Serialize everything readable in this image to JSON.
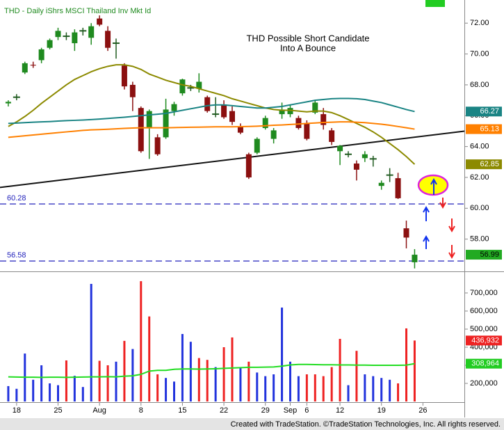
{
  "header": "THD - Daily  iShrs MSCI Thailand Inv Mkt Id",
  "footer": "Created with TradeStation. ©TradeStation Technologies, Inc. All rights reserved.",
  "chart_data": [
    {
      "type": "candlestick",
      "title": "THD Possible Short Candidate",
      "subtitle": "Into A Bounce",
      "x": [
        0,
        1,
        2,
        3,
        4,
        5,
        6,
        7,
        8,
        9,
        10,
        11,
        12,
        13,
        14,
        15,
        16,
        17,
        18,
        19,
        20,
        21,
        22,
        23,
        24,
        25,
        26,
        27,
        28,
        29,
        30,
        31,
        32,
        33,
        34,
        35,
        36,
        37,
        38,
        39,
        40,
        41,
        42,
        43,
        44,
        45,
        46,
        47,
        48,
        49
      ],
      "open": [
        66.8,
        67.2,
        68.8,
        69.3,
        69.6,
        70.4,
        71.1,
        71.15,
        70.7,
        71.5,
        71.05,
        72.3,
        71.5,
        70.7,
        69.25,
        68.0,
        66.5,
        65.2,
        64.6,
        64.6,
        66.3,
        67.45,
        67.8,
        67.75,
        67.2,
        66.1,
        66.7,
        66.3,
        65.3,
        63.5,
        63.6,
        65.2,
        64.5,
        66.1,
        66.1,
        65.85,
        65.5,
        66.2,
        66.1,
        65.05,
        63.7,
        63.5,
        62.9,
        63.25,
        63.2,
        61.45,
        62.15,
        61.95,
        58.7,
        56.5
      ],
      "high": [
        67.0,
        67.4,
        69.5,
        69.5,
        70.4,
        71.0,
        71.7,
        71.4,
        71.6,
        71.7,
        72.0,
        72.5,
        71.8,
        71.0,
        69.4,
        68.2,
        66.6,
        66.4,
        64.8,
        67.1,
        66.9,
        68.4,
        68.0,
        68.75,
        67.3,
        67.2,
        67.0,
        66.6,
        65.5,
        63.6,
        64.6,
        66.0,
        65.2,
        66.85,
        66.7,
        66.0,
        65.7,
        67.0,
        66.5,
        65.2,
        64.1,
        63.7,
        63.1,
        63.7,
        63.4,
        61.8,
        62.6,
        62.3,
        59.2,
        57.35
      ],
      "low": [
        66.6,
        67.0,
        68.7,
        69.1,
        69.4,
        70.3,
        70.9,
        70.9,
        70.2,
        71.2,
        70.6,
        71.8,
        70.2,
        69.7,
        67.7,
        66.3,
        63.6,
        63.2,
        63.4,
        64.5,
        66.0,
        67.3,
        67.6,
        67.5,
        66.2,
        65.9,
        65.8,
        65.4,
        64.8,
        61.9,
        63.5,
        65.1,
        64.2,
        65.8,
        65.9,
        65.1,
        64.4,
        66.1,
        65.1,
        64.1,
        62.8,
        63.3,
        61.8,
        63.0,
        62.7,
        61.2,
        61.7,
        60.6,
        57.4,
        56.1
      ],
      "close": [
        66.9,
        67.2,
        69.4,
        69.25,
        70.3,
        70.9,
        71.5,
        71.15,
        71.4,
        71.5,
        71.8,
        71.9,
        70.4,
        70.7,
        67.9,
        67.2,
        63.7,
        66.3,
        63.5,
        66.4,
        66.75,
        68.35,
        67.8,
        68.2,
        66.3,
        66.1,
        65.9,
        65.6,
        64.9,
        62.0,
        64.5,
        65.85,
        65.05,
        66.4,
        66.5,
        65.2,
        64.5,
        66.85,
        65.4,
        64.3,
        64.05,
        63.5,
        62.5,
        63.5,
        63.2,
        61.65,
        62.15,
        60.65,
        58.1,
        56.99
      ],
      "up_color": "#1f8a1f",
      "down_color": "#8b1010",
      "doji_color": "#1f5a1f",
      "series": [
        {
          "color": "#8c8a00",
          "values": [
            65.3,
            65.6,
            65.95,
            66.35,
            66.8,
            67.2,
            67.6,
            68.0,
            68.35,
            68.6,
            68.85,
            69.05,
            69.2,
            69.3,
            69.3,
            69.2,
            69.0,
            68.7,
            68.5,
            68.3,
            68.15,
            68.0,
            67.9,
            67.75,
            67.6,
            67.45,
            67.3,
            67.1,
            66.95,
            66.8,
            66.65,
            66.5,
            66.4,
            66.35,
            66.35,
            66.3,
            66.25,
            66.3,
            66.3,
            66.2,
            66.0,
            65.75,
            65.5,
            65.25,
            64.95,
            64.6,
            64.2,
            63.8,
            63.35,
            62.85
          ]
        },
        {
          "color": "#1a8484",
          "values": [
            65.5,
            65.52,
            65.55,
            65.58,
            65.6,
            65.62,
            65.65,
            65.68,
            65.7,
            65.72,
            65.75,
            65.78,
            65.82,
            65.86,
            65.9,
            65.95,
            66.0,
            66.05,
            66.1,
            66.15,
            66.25,
            66.35,
            66.45,
            66.55,
            66.65,
            66.7,
            66.7,
            66.65,
            66.6,
            66.55,
            66.5,
            66.5,
            66.55,
            66.6,
            66.7,
            66.8,
            66.9,
            67.0,
            67.05,
            67.1,
            67.12,
            67.12,
            67.1,
            67.05,
            66.95,
            66.85,
            66.7,
            66.55,
            66.4,
            66.27
          ]
        },
        {
          "color": "#ff8000",
          "values": [
            64.6,
            64.65,
            64.7,
            64.75,
            64.8,
            64.85,
            64.9,
            64.95,
            65.0,
            65.05,
            65.08,
            65.1,
            65.12,
            65.15,
            65.18,
            65.2,
            65.22,
            65.22,
            65.22,
            65.22,
            65.23,
            65.24,
            65.25,
            65.26,
            65.27,
            65.28,
            65.28,
            65.28,
            65.29,
            65.3,
            65.32,
            65.35,
            65.38,
            65.4,
            65.43,
            65.46,
            65.5,
            65.53,
            65.56,
            65.58,
            65.6,
            65.6,
            65.58,
            65.55,
            65.5,
            65.45,
            65.38,
            65.3,
            65.22,
            65.13
          ]
        }
      ],
      "trendline": {
        "x": [
          -1,
          55
        ],
        "y": [
          61.35,
          65.0
        ],
        "color": "#111111"
      },
      "hlines": [
        {
          "value": 60.28,
          "color": "#2222bb"
        },
        {
          "value": 56.58,
          "color": "#2222bb"
        }
      ],
      "price_tags": [
        {
          "value": 66.27,
          "color": "#1a8484",
          "text_color": "#ffffff"
        },
        {
          "value": 65.13,
          "color": "#ff8000",
          "text_color": "#ffffff"
        },
        {
          "value": 62.85,
          "color": "#8c8a00",
          "text_color": "#ffffff"
        },
        {
          "value": 56.99,
          "color": "#22aa22",
          "text_color": "#000000"
        }
      ],
      "xlim": [
        -1,
        55
      ],
      "ylim": [
        56,
        73.5
      ],
      "yticks": [
        {
          "value": 58,
          "label": "58.00"
        },
        {
          "value": 60,
          "label": "60.00"
        },
        {
          "value": 62,
          "label": "62.00"
        },
        {
          "value": 64,
          "label": "64.00"
        },
        {
          "value": 66,
          "label": "66.00"
        },
        {
          "value": 68,
          "label": "68.00"
        },
        {
          "value": 70,
          "label": "70.00"
        },
        {
          "value": 72,
          "label": "72.00"
        }
      ]
    },
    {
      "type": "bar",
      "x": [
        0,
        1,
        2,
        3,
        4,
        5,
        6,
        7,
        8,
        9,
        10,
        11,
        12,
        13,
        14,
        15,
        16,
        17,
        18,
        19,
        20,
        21,
        22,
        23,
        24,
        25,
        26,
        27,
        28,
        29,
        30,
        31,
        32,
        33,
        34,
        35,
        36,
        37,
        38,
        39,
        40,
        41,
        42,
        43,
        44,
        45,
        46,
        47,
        48,
        49
      ],
      "values": [
        185000,
        170000,
        365000,
        220000,
        300000,
        200000,
        190000,
        327000,
        242000,
        180000,
        750000,
        325000,
        300000,
        320000,
        435000,
        390000,
        765000,
        570000,
        250000,
        230000,
        210000,
        473000,
        430000,
        340000,
        330000,
        290000,
        400000,
        454000,
        290000,
        320000,
        260000,
        240000,
        250000,
        619000,
        320000,
        240000,
        250000,
        250000,
        240000,
        290000,
        446000,
        190000,
        380000,
        250000,
        240000,
        230000,
        220000,
        200000,
        504000,
        436932
      ],
      "colors": [
        "#2233dd",
        "#2233dd",
        "#2233dd",
        "#2233dd",
        "#2233dd",
        "#2233dd",
        "#2233dd",
        "#ee2222",
        "#2233dd",
        "#2233dd",
        "#2233dd",
        "#ee2222",
        "#ee2222",
        "#2233dd",
        "#ee2222",
        "#2233dd",
        "#ee2222",
        "#ee2222",
        "#ee2222",
        "#2233dd",
        "#2233dd",
        "#2233dd",
        "#2233dd",
        "#ee2222",
        "#ee2222",
        "#2233dd",
        "#ee2222",
        "#ee2222",
        "#2233dd",
        "#ee2222",
        "#2233dd",
        "#2233dd",
        "#2233dd",
        "#2233dd",
        "#2233dd",
        "#2233dd",
        "#ee2222",
        "#ee2222",
        "#ee2222",
        "#ee2222",
        "#ee2222",
        "#2233dd",
        "#ee2222",
        "#2233dd",
        "#2233dd",
        "#2233dd",
        "#2233dd",
        "#ee2222",
        "#ee2222",
        "#ee2222"
      ],
      "series": [
        {
          "color": "#22dd22",
          "values": [
            236000,
            235000,
            234000,
            234000,
            233000,
            234000,
            234000,
            233000,
            234000,
            235000,
            236000,
            236000,
            237000,
            236000,
            240000,
            242000,
            250000,
            268000,
            272000,
            272000,
            278000,
            280000,
            280000,
            279000,
            280000,
            281000,
            283000,
            285000,
            287000,
            289000,
            289000,
            290000,
            291000,
            295000,
            302000,
            305000,
            305000,
            304000,
            303000,
            303000,
            302000,
            302000,
            301000,
            301000,
            300000,
            300000,
            300000,
            300000,
            301000,
            308964
          ]
        }
      ],
      "price_tags": [
        {
          "value": 436932,
          "label": "436,932",
          "color": "#ee2222",
          "text_color": "#ffffff"
        },
        {
          "value": 308964,
          "label": "308,964",
          "color": "#22cc22",
          "text_color": "#ffffff"
        }
      ],
      "xlim": [
        -1,
        55
      ],
      "ylim": [
        100000,
        800000
      ],
      "yticks": [
        {
          "value": 200000,
          "label": "200,000"
        },
        {
          "value": 300000,
          "label": "300,000"
        },
        {
          "value": 400000,
          "label": "400,000"
        },
        {
          "value": 500000,
          "label": "500,000"
        },
        {
          "value": 600000,
          "label": "600,000"
        },
        {
          "value": 700000,
          "label": "700,000"
        }
      ],
      "xticks": [
        {
          "value": 1,
          "label": "18"
        },
        {
          "value": 6,
          "label": "25"
        },
        {
          "value": 11,
          "label": "Aug"
        },
        {
          "value": 16,
          "label": "8"
        },
        {
          "value": 21,
          "label": "15"
        },
        {
          "value": 26,
          "label": "22"
        },
        {
          "value": 31,
          "label": "29"
        },
        {
          "value": 34,
          "label": "Sep"
        },
        {
          "value": 36,
          "label": "6"
        },
        {
          "value": 40,
          "label": "12"
        },
        {
          "value": 45,
          "label": "19"
        },
        {
          "value": 50,
          "label": "26"
        }
      ]
    }
  ]
}
